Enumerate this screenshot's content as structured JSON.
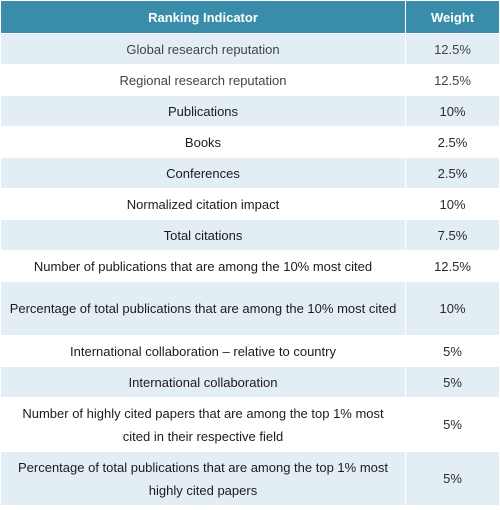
{
  "table": {
    "headers": {
      "indicator": "Ranking Indicator",
      "weight": "Weight"
    },
    "rows": [
      {
        "indicator": "Global research reputation",
        "weight": "12.5%"
      },
      {
        "indicator": "Regional research reputation",
        "weight": "12.5%"
      },
      {
        "indicator": "Publications",
        "weight": "10%"
      },
      {
        "indicator": "Books",
        "weight": "2.5%"
      },
      {
        "indicator": "Conferences",
        "weight": "2.5%"
      },
      {
        "indicator": "Normalized citation impact",
        "weight": "10%"
      },
      {
        "indicator": "Total citations",
        "weight": "7.5%"
      },
      {
        "indicator": "Number of publications that are among the 10% most cited",
        "weight": "12.5%"
      },
      {
        "indicator": "Percentage of total publications that are among the 10% most cited",
        "weight": "10%"
      },
      {
        "indicator": "International collaboration – relative to country",
        "weight": "5%"
      },
      {
        "indicator": "International collaboration",
        "weight": "5%"
      },
      {
        "indicator": "Number of highly cited papers that are among the top 1% most cited in their respective field",
        "weight": "5%"
      },
      {
        "indicator": "Percentage of total publications that are among the top 1% most highly cited papers",
        "weight": "5%"
      }
    ]
  }
}
